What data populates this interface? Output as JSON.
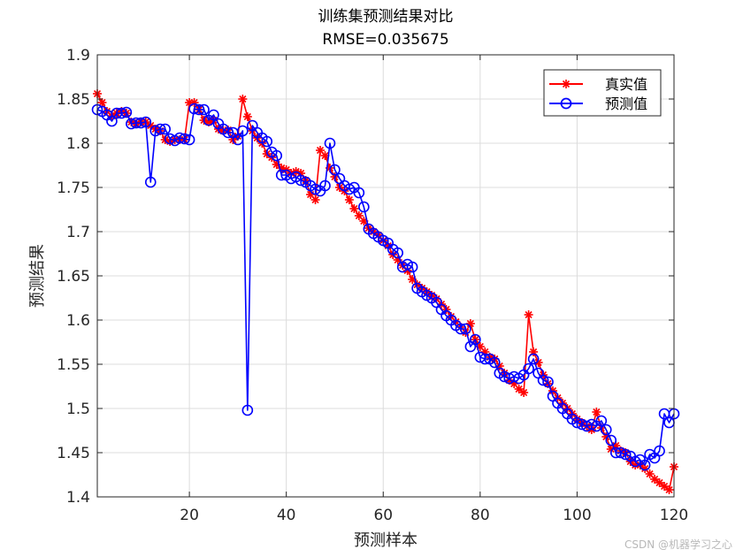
{
  "chart_data": {
    "type": "line",
    "title": "训练集预测结果对比",
    "subtitle": "RMSE=0.035675",
    "xlabel": "预测样本",
    "ylabel": "预测结果",
    "xlim": [
      1,
      120
    ],
    "ylim": [
      1.4,
      1.9
    ],
    "xticks": [
      "20",
      "40",
      "60",
      "80",
      "100",
      "120"
    ],
    "yticks": [
      "1.4",
      "1.45",
      "1.5",
      "1.55",
      "1.6",
      "1.65",
      "1.7",
      "1.75",
      "1.8",
      "1.85",
      "1.9"
    ],
    "grid": true,
    "legend_position": "top-right",
    "series": [
      {
        "name": "真实值",
        "color": "#ff0000",
        "marker": "asterisk",
        "values": [
          1.856,
          1.846,
          1.836,
          1.831,
          1.834,
          1.836,
          1.834,
          1.824,
          1.822,
          1.824,
          1.824,
          1.82,
          1.816,
          1.814,
          1.804,
          1.802,
          1.804,
          1.804,
          1.804,
          1.846,
          1.846,
          1.838,
          1.826,
          1.824,
          1.826,
          1.816,
          1.814,
          1.815,
          1.804,
          1.808,
          1.85,
          1.83,
          1.814,
          1.806,
          1.8,
          1.788,
          1.784,
          1.776,
          1.772,
          1.77,
          1.766,
          1.768,
          1.766,
          1.758,
          1.742,
          1.736,
          1.792,
          1.786,
          1.772,
          1.762,
          1.75,
          1.746,
          1.736,
          1.726,
          1.718,
          1.712,
          1.704,
          1.7,
          1.696,
          1.69,
          1.684,
          1.674,
          1.668,
          1.662,
          1.656,
          1.646,
          1.64,
          1.636,
          1.632,
          1.628,
          1.624,
          1.618,
          1.612,
          1.604,
          1.598,
          1.592,
          1.586,
          1.596,
          1.578,
          1.57,
          1.564,
          1.558,
          1.556,
          1.548,
          1.54,
          1.532,
          1.528,
          1.522,
          1.518,
          1.606,
          1.564,
          1.552,
          1.538,
          1.528,
          1.52,
          1.512,
          1.506,
          1.5,
          1.494,
          1.488,
          1.484,
          1.48,
          1.476,
          1.496,
          1.478,
          1.468,
          1.454,
          1.458,
          1.452,
          1.45,
          1.44,
          1.436,
          1.436,
          1.432,
          1.426,
          1.42,
          1.416,
          1.412,
          1.408,
          1.434
        ]
      },
      {
        "name": "预测值",
        "color": "#0000ff",
        "marker": "circle",
        "values": [
          1.838,
          1.836,
          1.832,
          1.825,
          1.834,
          1.834,
          1.835,
          1.822,
          1.823,
          1.823,
          1.824,
          1.756,
          1.814,
          1.816,
          1.816,
          1.805,
          1.803,
          1.806,
          1.805,
          1.804,
          1.839,
          1.838,
          1.838,
          1.826,
          1.832,
          1.822,
          1.816,
          1.812,
          1.812,
          1.804,
          1.814,
          1.498,
          1.82,
          1.812,
          1.806,
          1.802,
          1.79,
          1.786,
          1.764,
          1.764,
          1.76,
          1.762,
          1.758,
          1.756,
          1.752,
          1.748,
          1.746,
          1.752,
          1.8,
          1.77,
          1.76,
          1.752,
          1.748,
          1.75,
          1.744,
          1.728,
          1.703,
          1.698,
          1.694,
          1.69,
          1.687,
          1.68,
          1.676,
          1.66,
          1.663,
          1.66,
          1.636,
          1.632,
          1.628,
          1.625,
          1.62,
          1.612,
          1.605,
          1.6,
          1.594,
          1.59,
          1.59,
          1.57,
          1.578,
          1.558,
          1.556,
          1.556,
          1.552,
          1.54,
          1.536,
          1.534,
          1.536,
          1.534,
          1.538,
          1.545,
          1.556,
          1.54,
          1.532,
          1.53,
          1.514,
          1.506,
          1.5,
          1.494,
          1.488,
          1.484,
          1.482,
          1.48,
          1.482,
          1.48,
          1.486,
          1.476,
          1.464,
          1.45,
          1.45,
          1.448,
          1.446,
          1.44,
          1.442,
          1.436,
          1.448,
          1.444,
          1.452,
          1.494,
          1.484,
          1.494
        ]
      }
    ]
  },
  "watermark": "CSDN @机器学习之心"
}
